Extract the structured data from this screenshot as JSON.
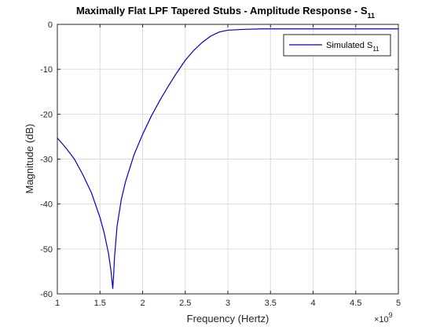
{
  "chart_data": {
    "type": "line",
    "title": "Maximally Flat LPF Tapered Stubs - Amplitude Response - S",
    "title_subscript": "11",
    "xlabel": "Frequency (Hertz)",
    "ylabel": "Magnitude (dB)",
    "x_multiplier": "×10",
    "x_multiplier_exponent": "9",
    "xlim": [
      1,
      5
    ],
    "ylim": [
      -60,
      0
    ],
    "x_ticks": [
      "1",
      "1.5",
      "2",
      "2.5",
      "3",
      "3.5",
      "4",
      "4.5",
      "5"
    ],
    "y_ticks": [
      "0",
      "-10",
      "-20",
      "-30",
      "-40",
      "-50",
      "-60"
    ],
    "grid": true,
    "legend_position": "top-right",
    "series": [
      {
        "name": "Simulated S",
        "name_subscript": "11",
        "color": "#0000cc",
        "x": [
          1.0,
          1.1,
          1.2,
          1.3,
          1.4,
          1.5,
          1.55,
          1.6,
          1.63,
          1.65,
          1.66,
          1.67,
          1.7,
          1.75,
          1.8,
          1.9,
          2.0,
          2.1,
          2.2,
          2.3,
          2.4,
          2.5,
          2.6,
          2.7,
          2.8,
          2.9,
          3.0,
          3.2,
          3.4,
          3.6,
          4.0,
          4.5,
          5.0
        ],
        "y": [
          -25.3,
          -27.5,
          -30.0,
          -33.5,
          -37.5,
          -43.0,
          -46.5,
          -51.0,
          -55.0,
          -58.8,
          -56.0,
          -52.0,
          -45.0,
          -39.0,
          -35.0,
          -29.0,
          -24.5,
          -20.5,
          -17.0,
          -13.8,
          -10.8,
          -8.0,
          -5.8,
          -4.0,
          -2.6,
          -1.7,
          -1.3,
          -1.1,
          -1.0,
          -1.0,
          -1.0,
          -1.0,
          -1.0
        ]
      }
    ]
  }
}
